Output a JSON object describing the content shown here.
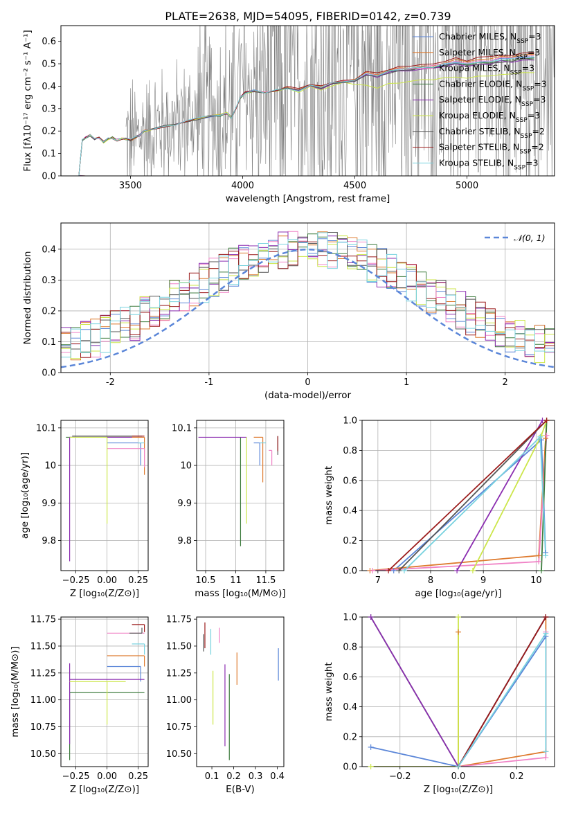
{
  "figure_title": "PLATE=2638, MJD=54095, FIBERID=0142, z=0.739",
  "colors": {
    "chabrier_miles": "#5b86d8",
    "salpeter_miles": "#de7a2e",
    "kroupa_miles": "#f082c6",
    "chabrier_elodie": "#3f7d3f",
    "salpeter_elodie": "#8b2db0",
    "kroupa_elodie": "#cce64a",
    "chabrier_stelib": "#555555",
    "salpeter_stelib": "#9b1b1b",
    "kroupa_stelib": "#78d2df",
    "data": "#7f7f7f",
    "gaussian": "#5b86d8"
  },
  "chart_data": [
    {
      "id": "spectrum",
      "type": "line",
      "title": "PLATE=2638, MJD=54095, FIBERID=0142, z=0.739",
      "xlabel": "wavelength [Angstrom, rest frame]",
      "ylabel": "Flux [fλ10⁻¹⁷ erg cm⁻² s⁻¹ A⁻¹]",
      "xlim": [
        3190,
        5390
      ],
      "ylim": [
        0,
        0.67
      ],
      "xticks": [
        3500,
        4000,
        4500,
        5000
      ],
      "yticks": [
        0.0,
        0.1,
        0.2,
        0.3,
        0.4,
        0.5,
        0.6
      ],
      "grid": false,
      "legend_position": "top-right",
      "legend": [
        "Chabrier MILES, N_SSP=3",
        "Salpeter MILES, N_SSP=3",
        "Kroupa MILES, N_SSP=3",
        "Chabrier ELODIE, N_SSP=3",
        "Salpeter ELODIE, N_SSP=3",
        "Kroupa ELODIE, N_SSP=3",
        "Chabrier STELIB, N_SSP=2",
        "Salpeter STELIB, N_SSP=2",
        "Kroupa STELIB, N_SSP=3"
      ],
      "model_curve": {
        "x": [
          3270,
          3285,
          3300,
          3320,
          3340,
          3360,
          3380,
          3400,
          3420,
          3440,
          3460,
          3480,
          3500,
          3520,
          3540,
          3560,
          3600,
          3650,
          3700,
          3750,
          3800,
          3850,
          3900,
          3930,
          3950,
          3970,
          3990,
          4010,
          4050,
          4100,
          4150,
          4200,
          4250,
          4300,
          4350,
          4400,
          4450,
          4500,
          4550,
          4600,
          4650,
          4700,
          4750,
          4800,
          4850,
          4900,
          4950,
          5000,
          5050,
          5100,
          5150,
          5200,
          5250,
          5300
        ],
        "y": [
          0.0,
          0.16,
          0.17,
          0.18,
          0.165,
          0.17,
          0.15,
          0.165,
          0.17,
          0.16,
          0.165,
          0.165,
          0.16,
          0.17,
          0.18,
          0.2,
          0.21,
          0.22,
          0.23,
          0.245,
          0.255,
          0.265,
          0.27,
          0.28,
          0.26,
          0.3,
          0.35,
          0.37,
          0.38,
          0.37,
          0.38,
          0.39,
          0.38,
          0.4,
          0.39,
          0.41,
          0.42,
          0.42,
          0.45,
          0.44,
          0.46,
          0.47,
          0.47,
          0.48,
          0.48,
          0.49,
          0.5,
          0.49,
          0.5,
          0.5,
          0.51,
          0.51,
          0.52,
          0.52
        ]
      },
      "model_offsets": [
        0.01,
        0.02,
        0.015,
        0.005,
        0.0,
        -0.02,
        0.0,
        0.03,
        0.01
      ],
      "data_note_range": [
        3480,
        5390
      ]
    },
    {
      "id": "residuals",
      "type": "line",
      "xlabel": "(data-model)/error",
      "ylabel": "Normed distribution",
      "xlim": [
        -2.5,
        2.5
      ],
      "ylim": [
        0,
        0.485
      ],
      "xticks": [
        -2,
        -1,
        0,
        1,
        2
      ],
      "yticks": [
        0.0,
        0.1,
        0.2,
        0.3,
        0.4
      ],
      "grid": true,
      "legend_position": "top-right",
      "legend": [
        "𝒩(0, 1)"
      ],
      "gaussian": {
        "mu": 0,
        "sigma": 1
      }
    },
    {
      "id": "age-vs-Z",
      "type": "scatter",
      "xlabel": "Z [log₁₀(Z/Z⊙)]",
      "ylabel": "age  [log₁₀(age/yr)]",
      "xlim": [
        -0.37,
        0.33
      ],
      "ylim": [
        9.72,
        10.12
      ],
      "xticks": [
        -0.25,
        0.0,
        0.25
      ],
      "xticklabels": [
        "−0.25",
        "0.00",
        "0.25"
      ],
      "yticks": [
        9.8,
        9.9,
        10.0,
        10.1
      ],
      "grid": true,
      "points": [
        {
          "x": 0.27,
          "y": 10.06,
          "xerr": [
            0.27,
            0.0
          ],
          "yerr": [
            0.06,
            0.0
          ],
          "c": "chabrier_miles"
        },
        {
          "x": 0.3,
          "y": 10.075,
          "xerr": [
            0.3,
            0.0
          ],
          "yerr": [
            0.1,
            0.0
          ],
          "c": "salpeter_miles"
        },
        {
          "x": 0.3,
          "y": 10.045,
          "xerr": [
            0.3,
            0.0
          ],
          "yerr": [
            0.05,
            0.0
          ],
          "c": "kroupa_miles"
        },
        {
          "x": 0.2,
          "y": 10.075,
          "xerr": [
            0.53,
            0.0
          ],
          "yerr": [
            0.0,
            0.0
          ],
          "c": "chabrier_elodie"
        },
        {
          "x": -0.3,
          "y": 10.075,
          "xerr": [
            0.0,
            0.5
          ],
          "yerr": [
            0.33,
            0.0
          ],
          "c": "salpeter_elodie"
        },
        {
          "x": 0.0,
          "y": 10.075,
          "xerr": [
            0.3,
            0.0
          ],
          "yerr": [
            0.23,
            0.0
          ],
          "c": "kroupa_elodie"
        },
        {
          "x": 0.28,
          "y": 10.078,
          "xerr": [
            0.56,
            0.0
          ],
          "yerr": [
            0.0,
            0.0
          ],
          "c": "chabrier_stelib"
        },
        {
          "x": 0.3,
          "y": 10.078,
          "xerr": [
            0.1,
            0.0
          ],
          "yerr": [
            0.0,
            0.0
          ],
          "c": "salpeter_stelib"
        },
        {
          "x": 0.3,
          "y": 10.06,
          "xerr": [
            0.05,
            0.0
          ],
          "yerr": [
            0.0,
            0.0
          ],
          "c": "kroupa_stelib"
        }
      ]
    },
    {
      "id": "age-vs-mass",
      "type": "scatter",
      "xlabel": "mass [log₁₀(M/M⊙)]",
      "ylabel": "",
      "xlim": [
        10.35,
        11.8
      ],
      "ylim": [
        9.72,
        10.12
      ],
      "xticks": [
        10.5,
        11.0,
        11.5
      ],
      "yticks": [
        9.8,
        9.9,
        10.0,
        10.1
      ],
      "grid": true,
      "points": [
        {
          "x": 11.4,
          "y": 10.06,
          "xerr": [
            0.1,
            0.0
          ],
          "yerr": [
            0.06,
            0.0
          ],
          "c": "chabrier_miles"
        },
        {
          "x": 11.45,
          "y": 10.075,
          "xerr": [
            0.15,
            0.0
          ],
          "yerr": [
            0.12,
            0.0
          ],
          "c": "salpeter_miles"
        },
        {
          "x": 11.6,
          "y": 10.04,
          "xerr": [
            0.05,
            0.0
          ],
          "yerr": [
            0.04,
            0.0
          ],
          "c": "kroupa_miles"
        },
        {
          "x": 11.08,
          "y": 10.075,
          "xerr": [
            0.0,
            0.0
          ],
          "yerr": [
            0.29,
            0.0
          ],
          "c": "chabrier_elodie"
        },
        {
          "x": 11.18,
          "y": 10.075,
          "xerr": [
            0.8,
            0.0
          ],
          "yerr": [
            0.0,
            0.0
          ],
          "c": "salpeter_elodie"
        },
        {
          "x": 11.18,
          "y": 10.075,
          "xerr": [
            0.0,
            0.0
          ],
          "yerr": [
            0.23,
            0.0
          ],
          "c": "kroupa_elodie"
        },
        {
          "x": 11.7,
          "y": 10.078,
          "xerr": [
            0.0,
            0.0
          ],
          "yerr": [
            0.05,
            0.0
          ],
          "c": "chabrier_stelib"
        },
        {
          "x": 11.7,
          "y": 10.078,
          "xerr": [
            0.0,
            0.0
          ],
          "yerr": [
            0.04,
            0.0
          ],
          "c": "salpeter_stelib"
        },
        {
          "x": 11.5,
          "y": 10.06,
          "xerr": [
            0.1,
            0.0
          ],
          "yerr": [
            0.0,
            0.0
          ],
          "c": "kroupa_stelib"
        }
      ]
    },
    {
      "id": "weight-vs-age",
      "type": "line",
      "xlabel": "age  [log₁₀(age/yr)]",
      "ylabel": "mass weight",
      "xlim": [
        6.7,
        10.35
      ],
      "ylim": [
        0,
        1.0
      ],
      "xticks": [
        7,
        8,
        9,
        10
      ],
      "yticks": [
        0.0,
        0.2,
        0.4,
        0.6,
        0.8,
        1.0
      ],
      "grid": true,
      "series": [
        {
          "c": "chabrier_miles",
          "x": [
            7.3,
            10.1,
            10.18
          ],
          "y": [
            0.0,
            0.87,
            0.12
          ]
        },
        {
          "c": "salpeter_miles",
          "x": [
            6.85,
            10.05,
            10.18,
            10.2
          ],
          "y": [
            0.0,
            0.1,
            0.88,
            1.0
          ]
        },
        {
          "c": "kroupa_miles",
          "x": [
            6.9,
            10.05,
            10.2
          ],
          "y": [
            0.0,
            0.06,
            0.9
          ]
        },
        {
          "c": "chabrier_elodie",
          "x": [
            10.1,
            10.2
          ],
          "y": [
            0.0,
            1.0
          ]
        },
        {
          "c": "salpeter_elodie",
          "x": [
            8.5,
            10.12
          ],
          "y": [
            0.0,
            1.0
          ]
        },
        {
          "c": "kroupa_elodie",
          "x": [
            8.8,
            10.1,
            10.2
          ],
          "y": [
            0.0,
            0.9,
            1.0
          ]
        },
        {
          "c": "chabrier_stelib",
          "x": [
            7.4,
            10.2
          ],
          "y": [
            0.0,
            1.0
          ]
        },
        {
          "c": "salpeter_stelib",
          "x": [
            7.2,
            10.2
          ],
          "y": [
            0.0,
            1.0
          ]
        },
        {
          "c": "kroupa_stelib",
          "x": [
            7.5,
            10.08,
            10.18
          ],
          "y": [
            0.0,
            0.89,
            0.1
          ]
        }
      ]
    },
    {
      "id": "mass-vs-Z",
      "type": "scatter",
      "xlabel": "Z [log₁₀(Z/Z⊙)]",
      "ylabel": "mass [log₁₀(M/M⊙)]",
      "xlim": [
        -0.37,
        0.33
      ],
      "ylim": [
        10.38,
        11.77
      ],
      "xticks": [
        -0.25,
        0.0,
        0.25
      ],
      "xticklabels": [
        "−0.25",
        "0.00",
        "0.25"
      ],
      "yticks": [
        10.5,
        10.75,
        11.0,
        11.25,
        11.5,
        11.75
      ],
      "yticklabels": [
        "10.50",
        "10.75",
        "11.00",
        "11.25",
        "11.50",
        "11.75"
      ],
      "grid": true,
      "points": [
        {
          "x": 0.27,
          "y": 11.31,
          "xerr": [
            0.27,
            0.0
          ],
          "yerr": [
            0.14,
            0.0
          ],
          "c": "chabrier_miles"
        },
        {
          "x": 0.3,
          "y": 11.41,
          "xerr": [
            0.3,
            0.0
          ],
          "yerr": [
            0.1,
            0.0
          ],
          "c": "salpeter_miles"
        },
        {
          "x": 0.3,
          "y": 11.62,
          "xerr": [
            0.3,
            0.0
          ],
          "yerr": [
            0.0,
            0.0
          ],
          "c": "kroupa_miles"
        },
        {
          "x": -0.3,
          "y": 11.07,
          "xerr": [
            0.0,
            0.6
          ],
          "yerr": [
            0.63,
            0.0
          ],
          "c": "chabrier_elodie"
        },
        {
          "x": -0.3,
          "y": 11.19,
          "xerr": [
            0.0,
            0.6
          ],
          "yerr": [
            0.6,
            0.15
          ],
          "c": "salpeter_elodie"
        },
        {
          "x": 0.0,
          "y": 11.17,
          "xerr": [
            0.3,
            0.15
          ],
          "yerr": [
            0.4,
            0.0
          ],
          "c": "kroupa_elodie"
        },
        {
          "x": 0.28,
          "y": 11.62,
          "xerr": [
            0.1,
            0.0
          ],
          "yerr": [
            0.0,
            0.05
          ],
          "c": "chabrier_stelib"
        },
        {
          "x": 0.3,
          "y": 11.7,
          "xerr": [
            0.1,
            0.0
          ],
          "yerr": [
            0.07,
            0.0
          ],
          "c": "salpeter_stelib"
        },
        {
          "x": 0.3,
          "y": 11.52,
          "xerr": [
            0.1,
            0.0
          ],
          "yerr": [
            0.1,
            0.0
          ],
          "c": "kroupa_stelib"
        }
      ]
    },
    {
      "id": "mass-vs-ebv",
      "type": "scatter",
      "xlabel": "E(B-V)",
      "ylabel": "",
      "xlim": [
        0.03,
        0.43
      ],
      "ylim": [
        10.38,
        11.77
      ],
      "xticks": [
        0.1,
        0.2,
        0.3,
        0.4
      ],
      "yticks": [
        10.5,
        10.75,
        11.0,
        11.25,
        11.5,
        11.75
      ],
      "yticklabels": [
        "10.50",
        "10.75",
        "11.00",
        "11.25",
        "11.50",
        "11.75"
      ],
      "grid": false,
      "points": [
        {
          "x": 0.405,
          "y": 11.33,
          "yerr": [
            0.15,
            0.15
          ],
          "c": "chabrier_miles"
        },
        {
          "x": 0.215,
          "y": 11.29,
          "yerr": [
            0.15,
            0.15
          ],
          "c": "salpeter_miles"
        },
        {
          "x": 0.135,
          "y": 11.6,
          "yerr": [
            0.07,
            0.07
          ],
          "c": "kroupa_miles"
        },
        {
          "x": 0.18,
          "y": 10.84,
          "yerr": [
            0.4,
            0.4
          ],
          "c": "chabrier_elodie"
        },
        {
          "x": 0.16,
          "y": 10.95,
          "yerr": [
            0.38,
            0.38
          ],
          "c": "salpeter_elodie"
        },
        {
          "x": 0.105,
          "y": 11.02,
          "yerr": [
            0.25,
            0.25
          ],
          "c": "kroupa_elodie"
        },
        {
          "x": 0.062,
          "y": 11.53,
          "yerr": [
            0.08,
            0.08
          ],
          "c": "chabrier_stelib"
        },
        {
          "x": 0.068,
          "y": 11.6,
          "yerr": [
            0.12,
            0.12
          ],
          "c": "salpeter_stelib"
        },
        {
          "x": 0.095,
          "y": 11.54,
          "yerr": [
            0.12,
            0.12
          ],
          "c": "kroupa_stelib"
        }
      ]
    },
    {
      "id": "weight-vs-Z",
      "type": "line",
      "xlabel": "Z [log₁₀(Z/Z⊙)]",
      "ylabel": "mass weight",
      "xlim": [
        -0.33,
        0.33
      ],
      "ylim": [
        0,
        1.0
      ],
      "xticks": [
        -0.2,
        0.0,
        0.2
      ],
      "xticklabels": [
        "−0.2",
        "0.0",
        "0.2"
      ],
      "yticks": [
        0.0,
        0.2,
        0.4,
        0.6,
        0.8,
        1.0
      ],
      "grid": true,
      "series": [
        {
          "c": "chabrier_miles",
          "x": [
            -0.3,
            0.0,
            0.3
          ],
          "y": [
            0.13,
            0.0,
            0.87
          ]
        },
        {
          "c": "salpeter_miles",
          "x": [
            0.0,
            0.0,
            0.3,
            0.3
          ],
          "y": [
            0.9,
            0.0,
            0.1,
            1.0
          ]
        },
        {
          "c": "kroupa_miles",
          "x": [
            0.0,
            0.3,
            0.3
          ],
          "y": [
            0.0,
            0.06,
            0.9
          ]
        },
        {
          "c": "chabrier_elodie",
          "x": [
            -0.3,
            0.0,
            0.3
          ],
          "y": [
            1.0,
            0.0,
            1.0
          ]
        },
        {
          "c": "salpeter_elodie",
          "x": [
            -0.3,
            0.0,
            0.3
          ],
          "y": [
            1.0,
            0.0,
            1.0
          ]
        },
        {
          "c": "kroupa_elodie",
          "x": [
            -0.3,
            0.0,
            0.0
          ],
          "y": [
            0.0,
            0.0,
            1.0
          ]
        },
        {
          "c": "chabrier_stelib",
          "x": [
            0.0,
            0.3
          ],
          "y": [
            0.0,
            1.0
          ]
        },
        {
          "c": "salpeter_stelib",
          "x": [
            0.0,
            0.3
          ],
          "y": [
            0.0,
            1.0
          ]
        },
        {
          "c": "kroupa_stelib",
          "x": [
            0.0,
            0.3,
            0.3
          ],
          "y": [
            0.0,
            0.89,
            0.1
          ]
        }
      ]
    }
  ]
}
